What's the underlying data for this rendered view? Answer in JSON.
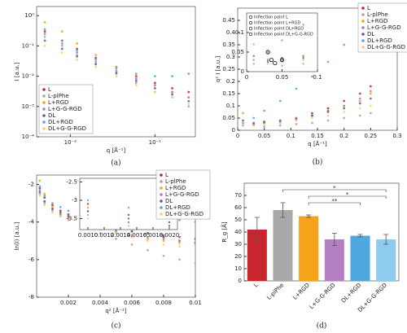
{
  "chart_data": [
    {
      "type": "scatter",
      "title": "(a)",
      "x_label": "q [Å⁻¹]",
      "y_label": "I [a.u.]",
      "xlog": true,
      "ylog": true,
      "xlim": [
        0.004,
        0.3
      ],
      "ylim": [
        0.0001,
        2
      ],
      "xticks": [
        {
          "value": 0.01,
          "label": "10⁻²"
        },
        {
          "value": 0.1,
          "label": "10⁻¹"
        }
      ],
      "yticks": [
        {
          "value": 0.0001,
          "label": "10⁻⁴"
        },
        {
          "value": 0.001,
          "label": "10⁻³"
        },
        {
          "value": 0.01,
          "label": "10⁻²"
        },
        {
          "value": 0.1,
          "label": "10⁻¹"
        },
        {
          "value": 1,
          "label": "10⁰"
        }
      ],
      "legend": "lower left",
      "x": [
        0.005,
        0.008,
        0.012,
        0.02,
        0.035,
        0.06,
        0.1,
        0.16,
        0.25
      ],
      "series": [
        {
          "name": "L",
          "color": "#c0272d",
          "values": [
            0.3,
            0.15,
            0.08,
            0.04,
            0.02,
            0.01,
            0.006,
            0.004,
            0.003
          ]
        },
        {
          "name": "L-plPhe",
          "color": "#a6a6a6",
          "values": [
            0.2,
            0.1,
            0.05,
            0.025,
            0.012,
            0.006,
            0.003,
            0.002,
            0.001
          ]
        },
        {
          "name": "L+RGD",
          "color": "#f2a21d",
          "values": [
            0.6,
            0.3,
            0.12,
            0.05,
            0.02,
            0.009,
            0.005,
            0.003,
            0.002
          ]
        },
        {
          "name": "L+G-G-RGD",
          "color": "#b07cc0",
          "values": [
            0.25,
            0.12,
            0.06,
            0.03,
            0.015,
            0.008,
            0.005,
            0.003,
            0.002
          ]
        },
        {
          "name": "DL",
          "color": "#6a5a8c",
          "values": [
            0.15,
            0.08,
            0.045,
            0.025,
            0.013,
            0.007,
            0.004,
            0.0025,
            0.0015
          ]
        },
        {
          "name": "DL+RGD",
          "color": "#4fa8de",
          "values": [
            0.35,
            0.15,
            0.07,
            0.035,
            0.018,
            0.012,
            0.01,
            0.01,
            0.012
          ]
        },
        {
          "name": "DL+G-G-RGD",
          "color": "#f5d36b",
          "values": [
            0.1,
            0.06,
            0.035,
            0.02,
            0.01,
            0.005,
            0.003,
            0.002,
            0.0012
          ]
        }
      ]
    },
    {
      "type": "scatter",
      "title": "(b)",
      "x_label": "q [Å⁻¹]",
      "y_label": "q² I [a.u.]",
      "xlim": [
        0,
        0.3
      ],
      "ylim": [
        0,
        0.5
      ],
      "xticks": [
        0,
        0.05,
        0.1,
        0.15,
        0.2,
        0.25,
        0.3
      ],
      "yticks": [
        0,
        0.05,
        0.1,
        0.15,
        0.2,
        0.25,
        0.3,
        0.35,
        0.4,
        0.45
      ],
      "legend": "upper right",
      "x": [
        0.01,
        0.03,
        0.05,
        0.08,
        0.11,
        0.14,
        0.17,
        0.2,
        0.23,
        0.25
      ],
      "series": [
        {
          "name": "L",
          "color": "#c0272d",
          "values": [
            0.04,
            0.03,
            0.035,
            0.04,
            0.05,
            0.07,
            0.09,
            0.12,
            0.15,
            0.18
          ]
        },
        {
          "name": "L-plPhe",
          "color": "#a6a6a6",
          "values": [
            0.02,
            0.02,
            0.015,
            0.02,
            0.025,
            0.03,
            0.04,
            0.05,
            0.06,
            0.07
          ]
        },
        {
          "name": "L+RGD",
          "color": "#f2a21d",
          "values": [
            0.07,
            0.03,
            0.03,
            0.03,
            0.04,
            0.06,
            0.08,
            0.1,
            0.12,
            0.15
          ]
        },
        {
          "name": "L+G-G-RGD",
          "color": "#b07cc0",
          "values": [
            0.03,
            0.03,
            0.03,
            0.04,
            0.05,
            0.06,
            0.08,
            0.1,
            0.13,
            0.16
          ]
        },
        {
          "name": "DL",
          "color": "#6a5a8c",
          "values": [
            0.02,
            0.025,
            0.03,
            0.035,
            0.045,
            0.06,
            0.075,
            0.09,
            0.11,
            0.13
          ]
        },
        {
          "name": "DL+RGD",
          "color": "#4fa8de",
          "values": [
            0.04,
            0.05,
            0.08,
            0.12,
            0.17,
            0.22,
            0.28,
            0.35,
            0.42,
            0.48
          ]
        },
        {
          "name": "DL+G-G-RGD",
          "color": "#f5d36b",
          "values": [
            0.02,
            0.02,
            0.025,
            0.03,
            0.04,
            0.05,
            0.06,
            0.075,
            0.09,
            0.1
          ]
        }
      ],
      "inset": {
        "xlim": [
          0,
          0.1
        ],
        "ylim": [
          0,
          0.15
        ],
        "xticks": [
          0,
          0.05,
          0.1
        ],
        "yticks": [
          0,
          0.05,
          0.1
        ],
        "markers": [
          {
            "name": "Inflection point L",
            "x": 0.035,
            "y": 0.03
          },
          {
            "name": "Inflection point L+RGD",
            "x": 0.05,
            "y": 0.03
          },
          {
            "name": "Inflection point DL+RGD",
            "x": 0.03,
            "y": 0.05
          },
          {
            "name": "Inflection point DL+G-G-RGD",
            "x": 0.04,
            "y": 0.022
          }
        ]
      }
    },
    {
      "type": "scatter",
      "title": "(c)",
      "x_label": "q² [Å⁻²]",
      "y_label": "ln(I) [a.u.]",
      "xlim": [
        0,
        0.01
      ],
      "ylim": [
        -8,
        -1.5
      ],
      "xticks": [
        0.002,
        0.004,
        0.006,
        0.008,
        0.01
      ],
      "yticks": [
        -8,
        -6,
        -4,
        -2
      ],
      "legend": "upper right",
      "x": [
        0.0002,
        0.0005,
        0.001,
        0.0015,
        0.002,
        0.003,
        0.004,
        0.005,
        0.006,
        0.007,
        0.008,
        0.009,
        0.01
      ],
      "series": [
        {
          "name": "L",
          "color": "#c0272d",
          "values": [
            -2.2,
            -2.7,
            -3.1,
            -3.4,
            -3.6,
            -3.9,
            -4.1,
            -4.3,
            -4.5,
            -4.6,
            -4.8,
            -5.0,
            -5.1
          ]
        },
        {
          "name": "L-plPhe",
          "color": "#a6a6a6",
          "values": [
            -2.5,
            -3.0,
            -3.4,
            -3.7,
            -3.9,
            -4.3,
            -4.6,
            -4.9,
            -5.2,
            -5.5,
            -5.8,
            -6.0,
            -6.2
          ]
        },
        {
          "name": "L+RGD",
          "color": "#f2a21d",
          "values": [
            -1.8,
            -2.5,
            -3.2,
            -3.6,
            -3.9,
            -4.2,
            -4.4,
            -4.6,
            -4.8,
            -4.9,
            -5.0,
            -5.1,
            -5.2
          ]
        },
        {
          "name": "L+G-G-RGD",
          "color": "#b07cc0",
          "values": [
            -2.3,
            -2.9,
            -3.3,
            -3.6,
            -3.8,
            -4.1,
            -4.3,
            -4.5,
            -4.7,
            -4.8,
            -4.9,
            -5.0,
            -5.1
          ]
        },
        {
          "name": "DL",
          "color": "#6a5a8c",
          "values": [
            -2.4,
            -2.9,
            -3.3,
            -3.5,
            -3.7,
            -4.0,
            -4.2,
            -4.4,
            -4.5,
            -4.6,
            -4.7,
            -4.8,
            -4.9
          ]
        },
        {
          "name": "DL+RGD",
          "color": "#4fa8de",
          "values": [
            -2.1,
            -2.6,
            -3.0,
            -3.2,
            -3.4,
            -3.6,
            -3.7,
            -3.8,
            -3.8,
            -3.9,
            -3.9,
            -3.9,
            -4.0
          ]
        },
        {
          "name": "DL+G-G-RGD",
          "color": "#f5d36b",
          "values": [
            -2.6,
            -3.1,
            -3.5,
            -3.7,
            -3.9,
            -4.2,
            -4.4,
            -4.6,
            -4.8,
            -5.0,
            -5.2,
            -5.3,
            -5.4
          ]
        }
      ],
      "inset": {
        "xlim": [
          0.0009,
          0.0021
        ],
        "ylim": [
          -3.8,
          -2.4
        ],
        "xticks": [
          {
            "value": 0.001,
            "label": "0.0010"
          },
          {
            "value": 0.0012,
            "label": "0.0012"
          },
          {
            "value": 0.0014,
            "label": "0.0014"
          },
          {
            "value": 0.0016,
            "label": "0.0016"
          },
          {
            "value": 0.0018,
            "label": "0.0018"
          },
          {
            "value": 0.002,
            "label": "0.0020"
          }
        ],
        "yticks": [
          -3.5,
          -3,
          -2.5
        ]
      }
    },
    {
      "type": "bar",
      "title": "(d)",
      "y_label": "R_g [Å]",
      "ylim": [
        0,
        80
      ],
      "yticks": [
        0,
        10,
        20,
        30,
        40,
        50,
        60,
        70
      ],
      "categories": [
        "L",
        "L-plPhe",
        "L+RGD",
        "L+G-G-RGD",
        "DL+RGD",
        "DL+G-G-RGD"
      ],
      "values": [
        42,
        58,
        53,
        34,
        37,
        34
      ],
      "errors": [
        10,
        6,
        1,
        5,
        1,
        4
      ],
      "colors": [
        "#c8262c",
        "#a9a9a9",
        "#f5a31a",
        "#b57fc4",
        "#4fa8de",
        "#8fcbef"
      ],
      "significance": [
        {
          "between": [
            "L-plPhe",
            "DL+G-G-RGD"
          ],
          "label": "*"
        },
        {
          "between": [
            "L+RGD",
            "DL+G-G-RGD"
          ],
          "label": "*"
        },
        {
          "between": [
            "L+RGD",
            "DL+RGD"
          ],
          "label": "**"
        }
      ]
    }
  ]
}
